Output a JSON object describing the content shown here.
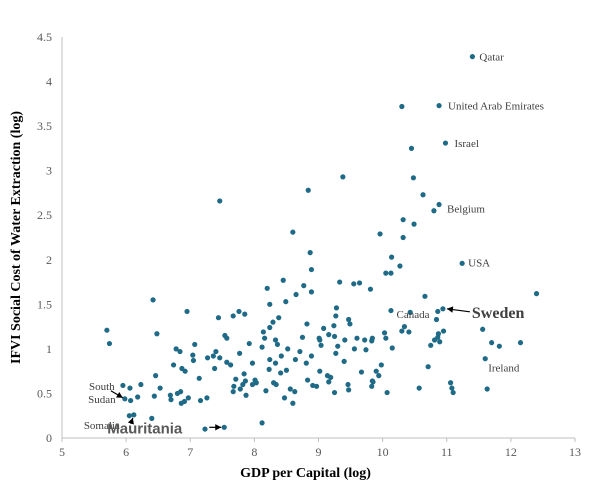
{
  "colors": {
    "point": "#1f6a86",
    "axis": "#bfbfbf",
    "tick_text": "#595959"
  },
  "chart_data": {
    "type": "scatter",
    "xlabel": "GDP per Capital (log)",
    "ylabel": "IFVI Social Cost of Water Extraction (log)",
    "xlim": [
      5,
      13
    ],
    "ylim": [
      0,
      4.5
    ],
    "x_ticks": [
      "5",
      "6",
      "7",
      "8",
      "9",
      "10",
      "11",
      "12",
      "13"
    ],
    "y_ticks": [
      "0",
      "0.5",
      "1",
      "1.5",
      "2",
      "2.5",
      "3",
      "3.5",
      "4",
      "4.5"
    ],
    "grid": false,
    "points": [
      [
        11.4,
        4.28
      ],
      [
        10.88,
        3.73
      ],
      [
        10.3,
        3.72
      ],
      [
        10.98,
        3.31
      ],
      [
        10.45,
        3.25
      ],
      [
        9.38,
        2.93
      ],
      [
        10.48,
        2.92
      ],
      [
        8.84,
        2.78
      ],
      [
        10.63,
        2.73
      ],
      [
        7.46,
        2.66
      ],
      [
        10.88,
        2.62
      ],
      [
        10.8,
        2.55
      ],
      [
        10.32,
        2.45
      ],
      [
        10.49,
        2.4
      ],
      [
        8.6,
        2.31
      ],
      [
        9.96,
        2.29
      ],
      [
        10.32,
        2.25
      ],
      [
        8.87,
        2.08
      ],
      [
        10.14,
        2.03
      ],
      [
        11.24,
        1.96
      ],
      [
        10.27,
        1.93
      ],
      [
        8.89,
        1.89
      ],
      [
        10.13,
        1.85
      ],
      [
        8.45,
        1.77
      ],
      [
        9.64,
        1.74
      ],
      [
        9.33,
        1.75
      ],
      [
        9.55,
        1.73
      ],
      [
        8.77,
        1.71
      ],
      [
        8.2,
        1.68
      ],
      [
        9.81,
        1.67
      ],
      [
        8.89,
        1.64
      ],
      [
        8.65,
        1.61
      ],
      [
        10.66,
        1.59
      ],
      [
        12.4,
        1.62
      ],
      [
        6.42,
        1.55
      ],
      [
        8.49,
        1.53
      ],
      [
        8.24,
        1.5
      ],
      [
        9.28,
        1.46
      ],
      [
        10.13,
        1.43
      ],
      [
        10.86,
        1.42
      ],
      [
        10.94,
        1.45
      ],
      [
        10.43,
        1.41
      ],
      [
        6.95,
        1.42
      ],
      [
        7.76,
        1.42
      ],
      [
        7.85,
        1.39
      ],
      [
        7.67,
        1.37
      ],
      [
        9.27,
        1.37
      ],
      [
        7.44,
        1.35
      ],
      [
        8.38,
        1.35
      ],
      [
        9.47,
        1.33
      ],
      [
        10.84,
        1.33
      ],
      [
        8.29,
        1.3
      ],
      [
        8.82,
        1.28
      ],
      [
        9.49,
        1.28
      ],
      [
        9.24,
        1.26
      ],
      [
        10.34,
        1.25
      ],
      [
        8.24,
        1.24
      ],
      [
        9.08,
        1.23
      ],
      [
        11.56,
        1.22
      ],
      [
        10.95,
        1.2
      ],
      [
        5.7,
        1.21
      ],
      [
        8.14,
        1.19
      ],
      [
        10.03,
        1.18
      ],
      [
        10.3,
        1.2
      ],
      [
        10.41,
        1.19
      ],
      [
        9.16,
        1.16
      ],
      [
        10.05,
        1.12
      ],
      [
        6.48,
        1.17
      ],
      [
        7.54,
        1.15
      ],
      [
        9.25,
        1.14
      ],
      [
        10.87,
        1.17
      ],
      [
        8.75,
        1.13
      ],
      [
        7.57,
        1.12
      ],
      [
        8.16,
        1.12
      ],
      [
        9.01,
        1.12
      ],
      [
        9.6,
        1.12
      ],
      [
        9.84,
        1.12
      ],
      [
        10.86,
        1.13
      ],
      [
        10.81,
        1.1
      ],
      [
        9.72,
        1.1
      ],
      [
        8.33,
        1.1
      ],
      [
        9.41,
        1.1
      ],
      [
        9.83,
        1.09
      ],
      [
        12.15,
        1.07
      ],
      [
        10.89,
        1.08
      ],
      [
        11.7,
        1.07
      ],
      [
        5.74,
        1.06
      ],
      [
        7.92,
        1.06
      ],
      [
        7.07,
        1.05
      ],
      [
        8.36,
        1.05
      ],
      [
        9.04,
        1.04
      ],
      [
        10.75,
        1.04
      ],
      [
        8.12,
        1.02
      ],
      [
        9.3,
        1.03
      ],
      [
        11.82,
        1.03
      ],
      [
        10.15,
        1.01
      ],
      [
        8.52,
        1.0
      ],
      [
        6.78,
        1.0
      ],
      [
        9.56,
        1.0
      ],
      [
        9.74,
        0.99
      ],
      [
        6.84,
        0.97
      ],
      [
        7.4,
        0.97
      ],
      [
        8.71,
        0.97
      ],
      [
        7.77,
        0.95
      ],
      [
        9.27,
        0.95
      ],
      [
        7.04,
        0.93
      ],
      [
        7.36,
        0.92
      ],
      [
        8.42,
        0.92
      ],
      [
        8.89,
        0.92
      ],
      [
        7.27,
        0.9
      ],
      [
        7.46,
        0.9
      ],
      [
        11.6,
        0.89
      ],
      [
        8.24,
        0.88
      ],
      [
        8.64,
        0.88
      ],
      [
        7.05,
        0.87
      ],
      [
        9.4,
        0.86
      ],
      [
        7.57,
        0.85
      ],
      [
        8.33,
        0.84
      ],
      [
        8.81,
        0.84
      ],
      [
        7.97,
        0.84
      ],
      [
        7.63,
        0.82
      ],
      [
        6.74,
        0.82
      ],
      [
        9.98,
        0.82
      ],
      [
        10.71,
        0.8
      ],
      [
        6.87,
        0.78
      ],
      [
        7.38,
        0.78
      ],
      [
        8.23,
        0.77
      ],
      [
        8.5,
        0.76
      ],
      [
        6.92,
        0.75
      ],
      [
        9.02,
        0.75
      ],
      [
        9.67,
        0.74
      ],
      [
        8.41,
        0.73
      ],
      [
        7.84,
        0.72
      ],
      [
        9.14,
        0.7
      ],
      [
        9.94,
        0.7
      ],
      [
        6.46,
        0.7
      ],
      [
        9.19,
        0.68
      ],
      [
        7.14,
        0.67
      ],
      [
        7.71,
        0.66
      ],
      [
        8.01,
        0.65
      ],
      [
        8.83,
        0.65
      ],
      [
        7.86,
        0.64
      ],
      [
        9.84,
        0.64
      ],
      [
        9.16,
        0.63
      ],
      [
        8.03,
        0.62
      ],
      [
        8.3,
        0.62
      ],
      [
        7.97,
        0.6
      ],
      [
        11.06,
        0.62
      ],
      [
        7.82,
        0.6
      ],
      [
        6.23,
        0.6
      ],
      [
        9.46,
        0.6
      ],
      [
        8.34,
        0.6
      ],
      [
        7.68,
        0.58
      ],
      [
        8.97,
        0.58
      ],
      [
        9.83,
        0.58
      ],
      [
        10.57,
        0.56
      ],
      [
        11.08,
        0.56
      ],
      [
        6.06,
        0.56
      ],
      [
        6.53,
        0.56
      ],
      [
        7.78,
        0.55
      ],
      [
        8.56,
        0.55
      ],
      [
        11.63,
        0.55
      ],
      [
        5.95,
        0.59
      ],
      [
        9.47,
        0.54
      ],
      [
        8.18,
        0.53
      ],
      [
        6.85,
        0.52
      ],
      [
        7.67,
        0.52
      ],
      [
        8.63,
        0.52
      ],
      [
        6.8,
        0.5
      ],
      [
        9.25,
        0.51
      ],
      [
        10.07,
        0.51
      ],
      [
        11.1,
        0.51
      ],
      [
        6.69,
        0.48
      ],
      [
        7.87,
        0.48
      ],
      [
        6.44,
        0.47
      ],
      [
        6.18,
        0.46
      ],
      [
        6.97,
        0.45
      ],
      [
        7.26,
        0.45
      ],
      [
        8.47,
        0.45
      ],
      [
        6.7,
        0.43
      ],
      [
        6.07,
        0.42
      ],
      [
        7.16,
        0.42
      ],
      [
        6.91,
        0.41
      ],
      [
        6.86,
        0.39
      ],
      [
        8.6,
        0.39
      ],
      [
        5.98,
        0.44
      ],
      [
        6.12,
        0.26
      ],
      [
        6.4,
        0.22
      ],
      [
        6.05,
        0.25
      ],
      [
        7.53,
        0.12
      ],
      [
        7.23,
        0.1
      ],
      [
        8.12,
        0.17
      ],
      [
        9.85,
        0.63
      ],
      [
        8.91,
        0.59
      ],
      [
        9.9,
        0.75
      ],
      [
        9.02,
        1.1
      ],
      [
        10.05,
        1.85
      ]
    ],
    "annotations": [
      {
        "name": "Qatar",
        "x": 11.4,
        "y": 4.28
      },
      {
        "name": "United Arab Emirates",
        "x": 10.88,
        "y": 3.73
      },
      {
        "name": "Israel",
        "x": 10.98,
        "y": 3.31
      },
      {
        "name": "Belgium",
        "x": 10.88,
        "y": 2.62
      },
      {
        "name": "USA",
        "x": 11.24,
        "y": 1.96
      },
      {
        "name": "Sweden",
        "x": 10.94,
        "y": 1.45
      },
      {
        "name": "Canada",
        "x": 10.95,
        "y": 1.2
      },
      {
        "name": "Ireland",
        "x": 11.6,
        "y": 0.89
      },
      {
        "name": "South Sudan",
        "x": 5.98,
        "y": 0.44
      },
      {
        "name": "Somalia",
        "x": 6.12,
        "y": 0.26
      },
      {
        "name": "Mauritania",
        "x": 7.53,
        "y": 0.12
      }
    ]
  }
}
